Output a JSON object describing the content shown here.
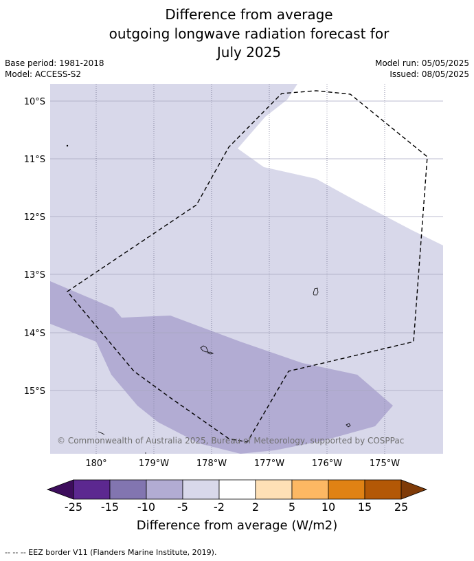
{
  "title": {
    "line1": "Difference from average",
    "line2": "outgoing longwave radiation forecast for",
    "line3": "July 2025"
  },
  "meta": {
    "base_period": "Base period: 1981-2018",
    "model": "Model: ACCESS-S2",
    "model_run": "Model run: 05/05/2025",
    "issued": "Issued: 08/05/2025"
  },
  "map": {
    "lat_labels": [
      "10°S",
      "11°S",
      "12°S",
      "13°S",
      "14°S",
      "15°S"
    ],
    "lon_labels": [
      "180°",
      "179°W",
      "178°W",
      "177°W",
      "176°W",
      "175°W"
    ],
    "copyright": "© Commonwealth of Australia 2025, Bureau of Meteorology, supported by COSPPac",
    "colors": {
      "bin_neg5_neg2": "#d8d8ea",
      "bin_neg10_neg5": "#b2acd3",
      "bin_neg2_2": "#ffffff",
      "eez_border": "#000000"
    }
  },
  "colorbar": {
    "ticks": [
      "-25",
      "-15",
      "-10",
      "-5",
      "-2",
      "2",
      "5",
      "10",
      "15",
      "25"
    ],
    "title": "Difference from average (W/m2)",
    "colors": [
      "#3d0d5c",
      "#5c2890",
      "#8275b0",
      "#b2acd3",
      "#d8d8ea",
      "#ffffff",
      "#fee0b6",
      "#fdb863",
      "#e08214",
      "#b35806",
      "#7f3b08"
    ]
  },
  "footnote": "--  --  -- EEZ border V11 (Flanders Marine Institute, 2019)."
}
